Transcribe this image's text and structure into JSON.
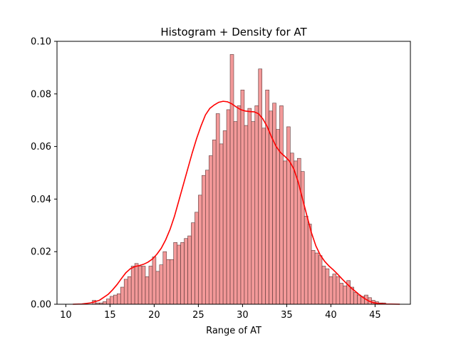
{
  "chart_data": {
    "type": "bar",
    "title": "Histogram + Density for AT",
    "xlabel": "Range of AT",
    "ylabel": "",
    "xlim": [
      9.0,
      49.0
    ],
    "ylim": [
      0.0,
      0.1
    ],
    "grid": false,
    "xticks": [
      {
        "value": 10,
        "label": "10"
      },
      {
        "value": 15,
        "label": "15"
      },
      {
        "value": 20,
        "label": "20"
      },
      {
        "value": 25,
        "label": "25"
      },
      {
        "value": 30,
        "label": "30"
      },
      {
        "value": 35,
        "label": "35"
      },
      {
        "value": 40,
        "label": "40"
      },
      {
        "value": 45,
        "label": "45"
      }
    ],
    "yticks": [
      {
        "value": 0.0,
        "label": "0.00"
      },
      {
        "value": 0.02,
        "label": "0.02"
      },
      {
        "value": 0.04,
        "label": "0.04"
      },
      {
        "value": 0.06,
        "label": "0.06"
      },
      {
        "value": 0.08,
        "label": "0.08"
      },
      {
        "value": 0.1,
        "label": "0.10"
      }
    ],
    "bar_color": "#f08080",
    "bar_edge_color": "#5a3a3a",
    "line_color": "#ff0000",
    "histogram": {
      "bins": [
        [
          13.0,
          13.4,
          0.0015
        ],
        [
          13.4,
          13.8,
          0.0005
        ],
        [
          13.8,
          14.2,
          0.0005
        ],
        [
          14.2,
          14.6,
          0.001
        ],
        [
          14.6,
          15.0,
          0.002
        ],
        [
          15.0,
          15.4,
          0.003
        ],
        [
          15.4,
          15.8,
          0.0035
        ],
        [
          15.8,
          16.2,
          0.004
        ],
        [
          16.2,
          16.6,
          0.0065
        ],
        [
          16.6,
          17.0,
          0.0095
        ],
        [
          17.0,
          17.4,
          0.0105
        ],
        [
          17.4,
          17.8,
          0.0145
        ],
        [
          17.8,
          18.2,
          0.0155
        ],
        [
          18.2,
          18.6,
          0.0145
        ],
        [
          18.6,
          19.0,
          0.0145
        ],
        [
          19.0,
          19.4,
          0.0105
        ],
        [
          19.4,
          19.8,
          0.0145
        ],
        [
          19.8,
          20.2,
          0.018
        ],
        [
          20.2,
          20.6,
          0.0125
        ],
        [
          20.6,
          21.0,
          0.015
        ],
        [
          21.0,
          21.4,
          0.02
        ],
        [
          21.4,
          21.8,
          0.017
        ],
        [
          21.8,
          22.2,
          0.017
        ],
        [
          22.2,
          22.6,
          0.0235
        ],
        [
          22.6,
          23.0,
          0.0225
        ],
        [
          23.0,
          23.4,
          0.0235
        ],
        [
          23.4,
          23.8,
          0.025
        ],
        [
          23.8,
          24.2,
          0.026
        ],
        [
          24.2,
          24.6,
          0.031
        ],
        [
          24.6,
          25.0,
          0.035
        ],
        [
          25.0,
          25.4,
          0.0415
        ],
        [
          25.4,
          25.8,
          0.049
        ],
        [
          25.8,
          26.2,
          0.051
        ],
        [
          26.2,
          26.6,
          0.0565
        ],
        [
          26.6,
          27.0,
          0.0625
        ],
        [
          27.0,
          27.4,
          0.0725
        ],
        [
          27.4,
          27.8,
          0.061
        ],
        [
          27.8,
          28.2,
          0.066
        ],
        [
          28.2,
          28.6,
          0.074
        ],
        [
          28.6,
          29.0,
          0.095
        ],
        [
          29.0,
          29.4,
          0.0695
        ],
        [
          29.4,
          29.8,
          0.0755
        ],
        [
          29.8,
          30.2,
          0.0815
        ],
        [
          30.2,
          30.6,
          0.068
        ],
        [
          30.6,
          31.0,
          0.0745
        ],
        [
          31.0,
          31.4,
          0.0695
        ],
        [
          31.4,
          31.8,
          0.0755
        ],
        [
          31.8,
          32.2,
          0.0895
        ],
        [
          32.2,
          32.6,
          0.067
        ],
        [
          32.6,
          33.0,
          0.0815
        ],
        [
          33.0,
          33.4,
          0.0735
        ],
        [
          33.4,
          33.8,
          0.0765
        ],
        [
          33.8,
          34.2,
          0.0665
        ],
        [
          34.2,
          34.6,
          0.0755
        ],
        [
          34.6,
          35.0,
          0.0545
        ],
        [
          35.0,
          35.4,
          0.0675
        ],
        [
          35.4,
          35.8,
          0.0575
        ],
        [
          35.8,
          36.2,
          0.0545
        ],
        [
          36.2,
          36.6,
          0.0555
        ],
        [
          36.6,
          37.0,
          0.0505
        ],
        [
          37.0,
          37.4,
          0.0335
        ],
        [
          37.4,
          37.8,
          0.0305
        ],
        [
          37.8,
          38.2,
          0.0205
        ],
        [
          38.2,
          38.6,
          0.0195
        ],
        [
          38.6,
          39.0,
          0.0185
        ],
        [
          39.0,
          39.4,
          0.0145
        ],
        [
          39.4,
          39.8,
          0.0135
        ],
        [
          39.8,
          40.2,
          0.0105
        ],
        [
          40.2,
          40.6,
          0.0115
        ],
        [
          40.6,
          41.0,
          0.0105
        ],
        [
          41.0,
          41.4,
          0.008
        ],
        [
          41.4,
          41.8,
          0.007
        ],
        [
          41.8,
          42.2,
          0.009
        ],
        [
          42.2,
          42.6,
          0.0065
        ],
        [
          42.6,
          43.0,
          0.0045
        ],
        [
          43.0,
          43.4,
          0.0035
        ],
        [
          43.4,
          43.8,
          0.003
        ],
        [
          43.8,
          44.2,
          0.0035
        ],
        [
          44.2,
          44.6,
          0.0025
        ],
        [
          44.6,
          45.0,
          0.0015
        ],
        [
          45.0,
          45.4,
          0.001
        ],
        [
          45.4,
          45.8,
          0.0005
        ],
        [
          45.8,
          46.2,
          0.0005
        ]
      ]
    },
    "density": {
      "x": [
        10.8,
        11.8,
        12.8,
        13.8,
        14.8,
        15.3,
        15.8,
        16.3,
        16.8,
        17.3,
        17.8,
        18.3,
        18.8,
        19.3,
        19.8,
        20.3,
        20.8,
        21.3,
        21.8,
        22.3,
        22.8,
        23.3,
        23.8,
        24.3,
        24.8,
        25.3,
        25.8,
        26.3,
        26.8,
        27.3,
        27.8,
        28.3,
        28.8,
        29.3,
        29.8,
        30.3,
        30.8,
        31.3,
        31.8,
        32.3,
        32.8,
        33.3,
        33.8,
        34.3,
        34.8,
        35.3,
        35.8,
        36.3,
        36.8,
        37.3,
        37.8,
        38.3,
        38.8,
        39.3,
        39.8,
        40.3,
        40.8,
        41.3,
        41.8,
        42.3,
        42.8,
        43.3,
        43.8,
        44.3,
        44.8,
        45.3,
        46.3,
        47.8
      ],
      "y": [
        0.0,
        0.0001,
        0.0005,
        0.0015,
        0.0038,
        0.0055,
        0.0075,
        0.0098,
        0.012,
        0.0135,
        0.0143,
        0.0147,
        0.0152,
        0.016,
        0.0172,
        0.019,
        0.0213,
        0.0245,
        0.0285,
        0.0335,
        0.0395,
        0.0455,
        0.0515,
        0.0575,
        0.063,
        0.0678,
        0.072,
        0.0745,
        0.0758,
        0.0768,
        0.0772,
        0.077,
        0.0762,
        0.075,
        0.074,
        0.0735,
        0.0733,
        0.0732,
        0.0725,
        0.0705,
        0.0675,
        0.0635,
        0.06,
        0.0577,
        0.0562,
        0.0545,
        0.0515,
        0.0465,
        0.04,
        0.0335,
        0.0272,
        0.0222,
        0.0187,
        0.0163,
        0.0145,
        0.013,
        0.0113,
        0.0095,
        0.0078,
        0.0062,
        0.0048,
        0.0034,
        0.0022,
        0.0012,
        0.0006,
        0.0003,
        0.0001,
        0.0
      ]
    }
  }
}
